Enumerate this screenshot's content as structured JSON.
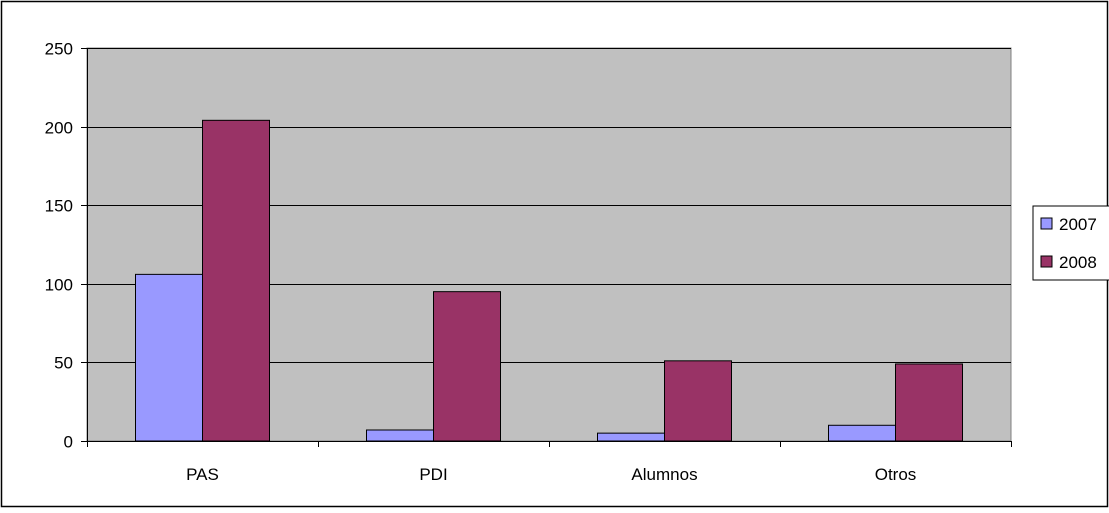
{
  "chart_data": {
    "type": "bar",
    "categories": [
      "PAS",
      "PDI",
      "Alumnos",
      "Otros"
    ],
    "series": [
      {
        "name": "2007",
        "color": "#9999ff",
        "values": [
          106,
          7,
          5,
          10
        ]
      },
      {
        "name": "2008",
        "color": "#993366",
        "values": [
          204,
          95,
          51,
          49
        ]
      }
    ],
    "ylim": [
      0,
      250
    ],
    "yticks": [
      0,
      50,
      100,
      150,
      200,
      250
    ],
    "plot_background": "#c0c0c0",
    "grid": true,
    "legend_position": "right",
    "title": "",
    "xlabel": "",
    "ylabel": ""
  }
}
